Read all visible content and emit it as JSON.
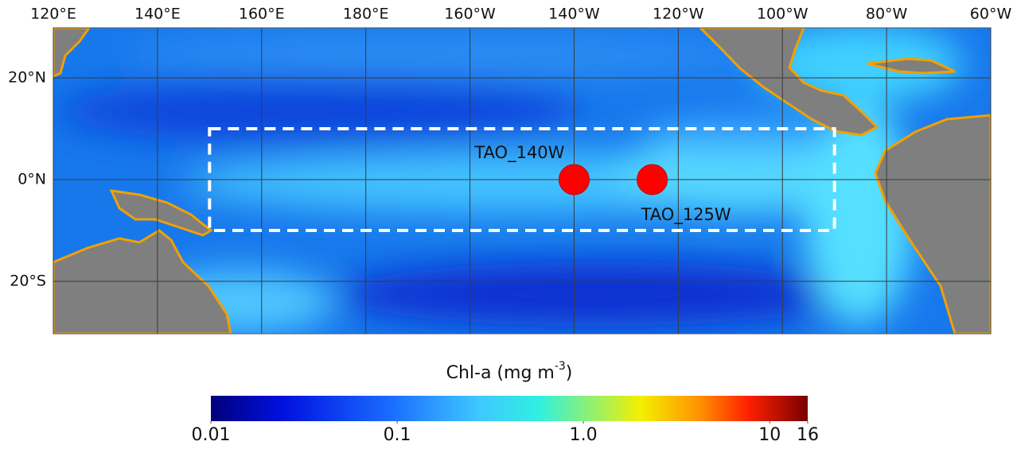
{
  "map": {
    "lon_ticks": [
      {
        "value": 120,
        "label": "120°E"
      },
      {
        "value": 140,
        "label": "140°E"
      },
      {
        "value": 160,
        "label": "160°E"
      },
      {
        "value": 180,
        "label": "180°E"
      },
      {
        "value": 200,
        "label": "160°W"
      },
      {
        "value": 220,
        "label": "140°W"
      },
      {
        "value": 240,
        "label": "120°W"
      },
      {
        "value": 260,
        "label": "100°W"
      },
      {
        "value": 280,
        "label": "80°W"
      },
      {
        "value": 300,
        "label": "60°W"
      }
    ],
    "lat_ticks": [
      {
        "value": 20,
        "label": "20°N"
      },
      {
        "value": 0,
        "label": "0°N"
      },
      {
        "value": -20,
        "label": "20°S"
      }
    ],
    "box": {
      "lon": [
        150,
        270
      ],
      "lat": [
        -10,
        10
      ]
    },
    "stations": [
      {
        "label": "TAO_140W",
        "lon": 220,
        "lat": 0
      },
      {
        "label": "TAO_125W",
        "lon": 235,
        "lat": 0
      }
    ]
  },
  "colorbar": {
    "title": "Chl-a (mg m",
    "title_superscript": "-3",
    "title_close": ")",
    "scale": "log",
    "range": [
      0.01,
      16
    ],
    "ticks": [
      0.01,
      0.1,
      {
        "value": 1,
        "label": "1.0"
      },
      10,
      16
    ]
  }
}
